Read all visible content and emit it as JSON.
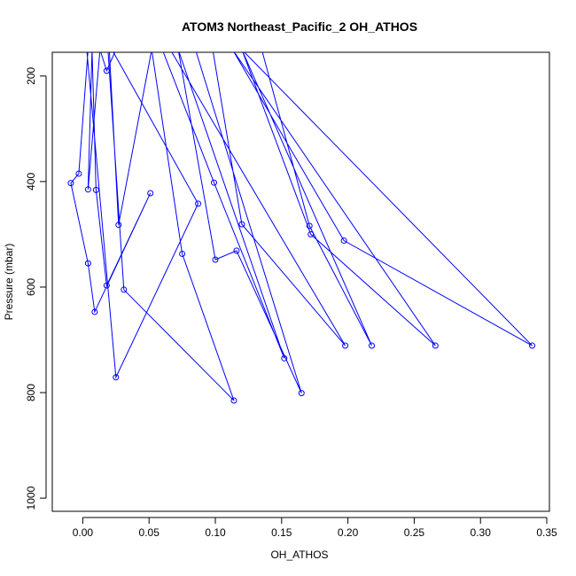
{
  "chart_data": {
    "type": "line",
    "title": "ATOM3 Northeast_Pacific_2 OH_ATHOS",
    "xlabel": "OH_ATHOS",
    "ylabel": "Pressure (mbar)",
    "xlim": [
      -0.023,
      0.352
    ],
    "ylim": [
      1025,
      155
    ],
    "y_inverted": true,
    "x_ticks": [
      0.0,
      0.05,
      0.1,
      0.15,
      0.2,
      0.25,
      0.3,
      0.35
    ],
    "x_tick_labels": [
      "0.00",
      "0.05",
      "0.10",
      "0.15",
      "0.20",
      "0.25",
      "0.30",
      "0.35"
    ],
    "y_ticks": [
      200,
      400,
      600,
      800,
      1000
    ],
    "y_tick_labels": [
      "200",
      "400",
      "600",
      "800",
      "1000"
    ],
    "grid": false,
    "series_color": "#0000ff",
    "series": [
      {
        "x": [
          0.004,
          -0.003,
          -0.009,
          0.004,
          0.009,
          0.051,
          0.018,
          0.01,
          0.007,
          0.004,
          0.013,
          0.018,
          0.025,
          0.017,
          0.019,
          0.031,
          0.114,
          0.075,
          0.052,
          0.027,
          0.02,
          0.011,
          0.003,
          0.025,
          0.087,
          0.022,
          0.06,
          0.099,
          0.152,
          0.072,
          0.1,
          0.116,
          0.165,
          0.085,
          0.098,
          0.12,
          0.198,
          0.066,
          0.135,
          0.171,
          0.218,
          0.12,
          0.172,
          0.266,
          0.113,
          0.197,
          0.339,
          0.12
        ],
        "y": [
          150,
          385,
          403,
          555,
          647,
          422,
          597,
          416,
          150,
          415,
          150,
          190,
          150,
          150,
          150,
          605,
          815,
          537,
          150,
          482,
          150,
          150,
          150,
          771,
          442,
          150,
          150,
          402,
          735,
          150,
          548,
          531,
          801,
          150,
          150,
          481,
          711,
          150,
          150,
          484,
          711,
          150,
          500,
          711,
          150,
          512,
          711,
          150
        ]
      }
    ]
  }
}
